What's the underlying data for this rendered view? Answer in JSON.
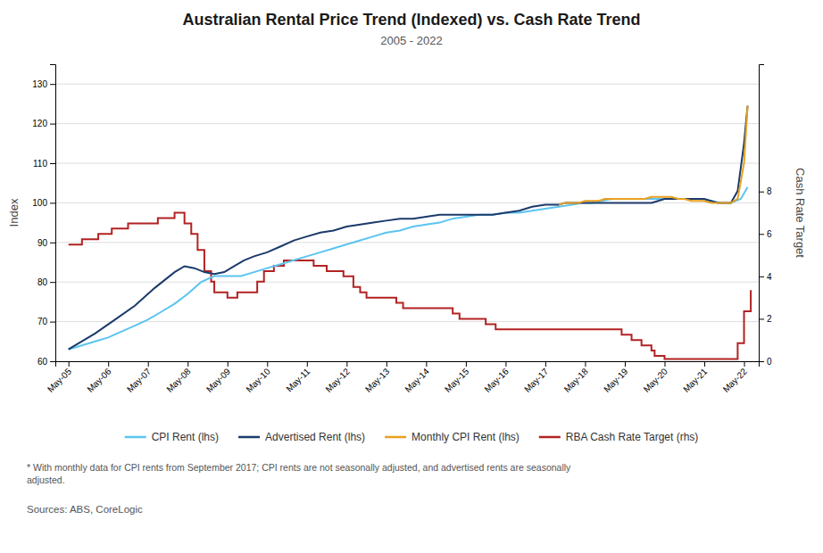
{
  "chart_data": {
    "type": "line",
    "title": "Australian Rental Price Trend (Indexed) vs. Cash Rate Trend",
    "subtitle": "2005 - 2022",
    "ylabel": "Index",
    "y2label": "Cash Rate Target",
    "footnote": "* With monthly data for CPI rents from September 2017; CPI rents are not seasonally adjusted, and advertised rents are seasonally\nadjusted.",
    "source": "Sources: ABS, CoreLogic",
    "xlim": [
      2005.0,
      2022.7
    ],
    "xticks": [
      {
        "value": 2005.33,
        "label": "May-05"
      },
      {
        "value": 2006.33,
        "label": "May-06"
      },
      {
        "value": 2007.33,
        "label": "May-07"
      },
      {
        "value": 2008.33,
        "label": "May-08"
      },
      {
        "value": 2009.33,
        "label": "May-09"
      },
      {
        "value": 2010.33,
        "label": "May-10"
      },
      {
        "value": 2011.33,
        "label": "May-11"
      },
      {
        "value": 2012.33,
        "label": "May-12"
      },
      {
        "value": 2013.33,
        "label": "May-13"
      },
      {
        "value": 2014.33,
        "label": "May-14"
      },
      {
        "value": 2015.33,
        "label": "May-15"
      },
      {
        "value": 2016.33,
        "label": "May-16"
      },
      {
        "value": 2017.33,
        "label": "May-17"
      },
      {
        "value": 2018.33,
        "label": "May-18"
      },
      {
        "value": 2019.33,
        "label": "May-19"
      },
      {
        "value": 2020.33,
        "label": "May-20"
      },
      {
        "value": 2021.33,
        "label": "May-21"
      },
      {
        "value": 2022.33,
        "label": "May-22"
      }
    ],
    "ylim": [
      60,
      135
    ],
    "yticks": [
      60,
      70,
      80,
      90,
      100,
      110,
      120,
      130
    ],
    "y2lim": [
      0,
      14.0
    ],
    "y2ticks": [
      0,
      2,
      4,
      6,
      8
    ],
    "grid": true,
    "series": [
      {
        "name": "CPI Rent (lhs)",
        "color": "#5BC4F0",
        "x": [
          2005.33,
          2005.67,
          2006.0,
          2006.33,
          2006.67,
          2007.0,
          2007.33,
          2007.67,
          2008.0,
          2008.33,
          2008.67,
          2009.0,
          2009.33,
          2009.67,
          2010.0,
          2010.33,
          2010.67,
          2011.0,
          2011.33,
          2011.67,
          2012.0,
          2012.33,
          2012.67,
          2013.0,
          2013.33,
          2013.67,
          2014.0,
          2014.33,
          2014.67,
          2015.0,
          2015.33,
          2015.67,
          2016.0,
          2016.33,
          2016.67,
          2017.0,
          2017.33,
          2017.67,
          2018.0,
          2018.25,
          2018.5,
          2018.75,
          2019.0,
          2019.25,
          2019.5,
          2019.75,
          2020.0,
          2020.25,
          2020.5,
          2020.75,
          2021.0,
          2021.25,
          2021.5,
          2021.75,
          2022.0,
          2022.25,
          2022.42
        ],
        "values": [
          63.0,
          64.0,
          65.0,
          66.0,
          67.5,
          69.0,
          70.5,
          72.5,
          74.5,
          77.0,
          80.0,
          81.5,
          81.5,
          81.5,
          82.5,
          83.5,
          84.5,
          85.5,
          86.5,
          87.5,
          88.5,
          89.5,
          90.5,
          91.5,
          92.5,
          93.0,
          94.0,
          94.5,
          95.0,
          96.0,
          96.5,
          97.0,
          97.0,
          97.5,
          97.5,
          98.0,
          98.5,
          99.0,
          99.5,
          100.0,
          100.0,
          100.5,
          101.0,
          101.0,
          101.0,
          101.0,
          101.0,
          101.0,
          101.0,
          101.0,
          101.0,
          101.0,
          100.5,
          100.0,
          100.0,
          101.0,
          104.0
        ]
      },
      {
        "name": "Advertised Rent (lhs)",
        "color": "#1B3A6B",
        "x": [
          2005.33,
          2006.0,
          2006.5,
          2007.0,
          2007.5,
          2008.0,
          2008.25,
          2008.5,
          2008.75,
          2009.0,
          2009.25,
          2009.5,
          2009.75,
          2010.0,
          2010.33,
          2010.67,
          2011.0,
          2011.33,
          2011.67,
          2012.0,
          2012.33,
          2012.67,
          2013.0,
          2013.33,
          2013.67,
          2014.0,
          2014.33,
          2014.67,
          2015.0,
          2015.33,
          2015.67,
          2016.0,
          2016.33,
          2016.67,
          2017.0,
          2017.33,
          2017.67,
          2017.83,
          2018.0,
          2018.17,
          2018.33,
          2018.5,
          2018.67,
          2018.83,
          2019.0,
          2019.17,
          2019.33,
          2019.5,
          2019.67,
          2019.83,
          2020.0,
          2020.17,
          2020.33,
          2020.5,
          2020.67,
          2020.83,
          2021.0,
          2021.17,
          2021.33,
          2021.5,
          2021.67,
          2021.83,
          2022.0,
          2022.17,
          2022.33,
          2022.42
        ],
        "values": [
          63.0,
          67.0,
          70.5,
          74.0,
          78.5,
          82.5,
          84.0,
          83.5,
          82.5,
          82.0,
          82.5,
          84.0,
          85.5,
          86.5,
          87.5,
          89.0,
          90.5,
          91.5,
          92.5,
          93.0,
          94.0,
          94.5,
          95.0,
          95.5,
          96.0,
          96.0,
          96.5,
          97.0,
          97.0,
          97.0,
          97.0,
          97.0,
          97.5,
          98.0,
          99.0,
          99.5,
          99.5,
          100.0,
          100.0,
          100.0,
          100.0,
          100.0,
          100.0,
          100.0,
          100.0,
          100.0,
          100.0,
          100.0,
          100.0,
          100.0,
          100.0,
          100.5,
          101.0,
          101.0,
          101.0,
          101.0,
          101.0,
          101.0,
          101.0,
          100.5,
          100.0,
          100.0,
          100.0,
          103.0,
          115.0,
          124.5
        ]
      },
      {
        "name": "Monthly CPI Rent (lhs)",
        "color": "#E8A020",
        "x": [
          2017.67,
          2017.83,
          2018.0,
          2018.17,
          2018.33,
          2018.5,
          2018.67,
          2018.83,
          2019.0,
          2019.17,
          2019.33,
          2019.5,
          2019.67,
          2019.83,
          2020.0,
          2020.17,
          2020.33,
          2020.5,
          2020.67,
          2020.83,
          2021.0,
          2021.17,
          2021.33,
          2021.5,
          2021.67,
          2021.83,
          2022.0,
          2022.17,
          2022.33,
          2022.42
        ],
        "values": [
          99.5,
          100.0,
          100.0,
          100.0,
          100.5,
          100.5,
          100.5,
          101.0,
          101.0,
          101.0,
          101.0,
          101.0,
          101.0,
          101.0,
          101.5,
          101.5,
          101.5,
          101.5,
          101.0,
          101.0,
          100.5,
          100.5,
          100.5,
          100.0,
          100.0,
          100.0,
          100.0,
          101.0,
          110.0,
          124.5
        ]
      },
      {
        "name": "RBA Cash Rate Target (rhs)",
        "color": "#B22222",
        "axis": "y2",
        "type": "step",
        "x": [
          2005.33,
          2005.5,
          2005.67,
          2005.83,
          2006.08,
          2006.17,
          2006.42,
          2006.58,
          2006.83,
          2007.0,
          2007.25,
          2007.58,
          2007.83,
          2008.0,
          2008.17,
          2008.25,
          2008.42,
          2008.58,
          2008.75,
          2008.92,
          2009.0,
          2009.33,
          2009.58,
          2009.83,
          2010.08,
          2010.25,
          2010.5,
          2010.75,
          2011.0,
          2011.17,
          2011.5,
          2011.83,
          2012.08,
          2012.25,
          2012.5,
          2012.67,
          2012.83,
          2013.08,
          2013.58,
          2013.75,
          2014.0,
          2015.0,
          2015.17,
          2015.83,
          2016.08,
          2017.0,
          2018.0,
          2019.0,
          2019.25,
          2019.5,
          2019.75,
          2020.0,
          2020.08,
          2020.17,
          2020.33,
          2021.0,
          2022.0,
          2022.17,
          2022.33,
          2022.5
        ],
        "values": [
          5.5,
          5.5,
          5.75,
          5.75,
          6.0,
          6.0,
          6.25,
          6.25,
          6.5,
          6.5,
          6.5,
          6.75,
          6.75,
          7.0,
          7.0,
          6.5,
          6.0,
          5.25,
          4.25,
          3.75,
          3.25,
          3.0,
          3.25,
          3.25,
          3.75,
          4.25,
          4.5,
          4.75,
          4.75,
          4.75,
          4.5,
          4.25,
          4.25,
          4.0,
          3.5,
          3.25,
          3.0,
          3.0,
          2.75,
          2.5,
          2.5,
          2.25,
          2.0,
          1.75,
          1.5,
          1.5,
          1.5,
          1.5,
          1.25,
          1.0,
          0.75,
          0.5,
          0.25,
          0.25,
          0.1,
          0.1,
          0.1,
          0.85,
          2.35,
          3.35
        ]
      }
    ]
  }
}
